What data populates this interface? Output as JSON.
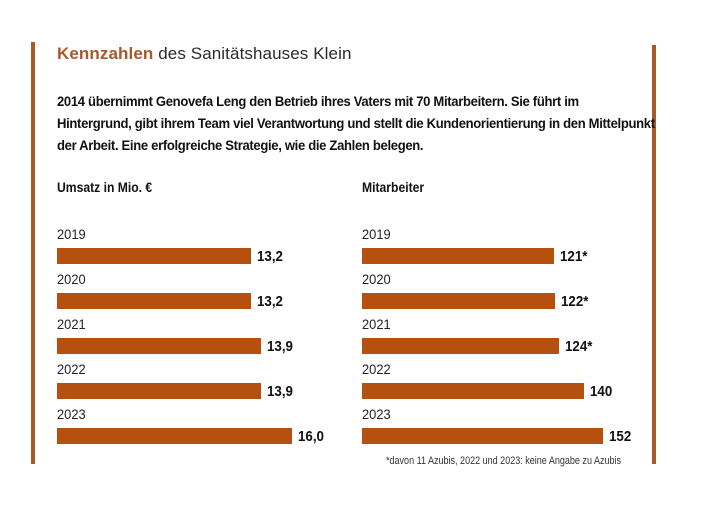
{
  "header": {
    "title_accent": "Kennzahlen",
    "title_rest": " des Sanitätshauses Klein"
  },
  "intro": "2014 übernimmt Genovefa Leng den Betrieb ihres Vaters mit 70 Mitarbeitern. Sie führt im Hintergrund, gibt ihrem Team viel Verantwortung und stellt die Kundenorientierung in den Mittelpunkt der Arbeit. Eine erfolgreiche Strategie, wie die Zahlen belegen.",
  "footnote": "*davon 11 Azubis, 2022 und 2023: keine Angabe zu Azubis",
  "colors": {
    "accent": "#a8582a",
    "bar": "#b5500f"
  },
  "chart_data": [
    {
      "type": "bar",
      "orientation": "horizontal",
      "title": "Umsatz in Mio. €",
      "categories": [
        "2019",
        "2020",
        "2021",
        "2022",
        "2023"
      ],
      "values": [
        13.2,
        13.2,
        13.9,
        13.9,
        16.0
      ],
      "labels": [
        "13,2",
        "13,2",
        "13,9",
        "13,9",
        "16,0"
      ],
      "xlim": [
        0,
        16
      ],
      "grid": false
    },
    {
      "type": "bar",
      "orientation": "horizontal",
      "title": "Mitarbeiter",
      "categories": [
        "2019",
        "2020",
        "2021",
        "2022",
        "2023"
      ],
      "values": [
        121,
        122,
        124,
        140,
        152
      ],
      "labels": [
        "121*",
        "122*",
        "124*",
        "140",
        "152"
      ],
      "xlim": [
        0,
        152
      ],
      "grid": false
    }
  ]
}
